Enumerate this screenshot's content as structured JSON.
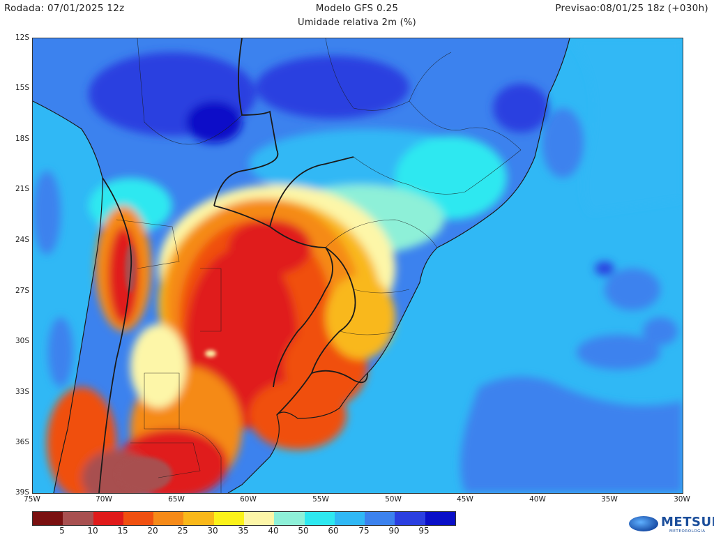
{
  "header": {
    "run": "Rodada: 07/01/2025 12z",
    "model": "Modelo GFS 0.25",
    "forecast": "Previsao:08/01/25 18z (+030h)",
    "variable": "Umidade relativa 2m (%)"
  },
  "map": {
    "lat_labels": [
      "12S",
      "15S",
      "18S",
      "21S",
      "24S",
      "27S",
      "30S",
      "33S",
      "36S",
      "39S"
    ],
    "lon_labels": [
      "75W",
      "70W",
      "65W",
      "60W",
      "55W",
      "50W",
      "45W",
      "40W",
      "35W",
      "30W"
    ],
    "region": "South America (southern cone)",
    "land_outline_color": "#1a1a1a"
  },
  "colorbar": {
    "labels": [
      "5",
      "10",
      "15",
      "20",
      "25",
      "30",
      "35",
      "40",
      "50",
      "60",
      "75",
      "90",
      "95"
    ],
    "colors": [
      "#7a1010",
      "#a85050",
      "#e01a1a",
      "#f05010",
      "#f58a18",
      "#f9b81a",
      "#fbf21a",
      "#fdf6a8",
      "#8ef0d8",
      "#2ee8f0",
      "#30b8f5",
      "#3c82ee",
      "#2b3fe0",
      "#0a0fc8"
    ]
  },
  "logo": {
    "brand": "METSUL",
    "subtitle": "METEOROLOGIA"
  }
}
